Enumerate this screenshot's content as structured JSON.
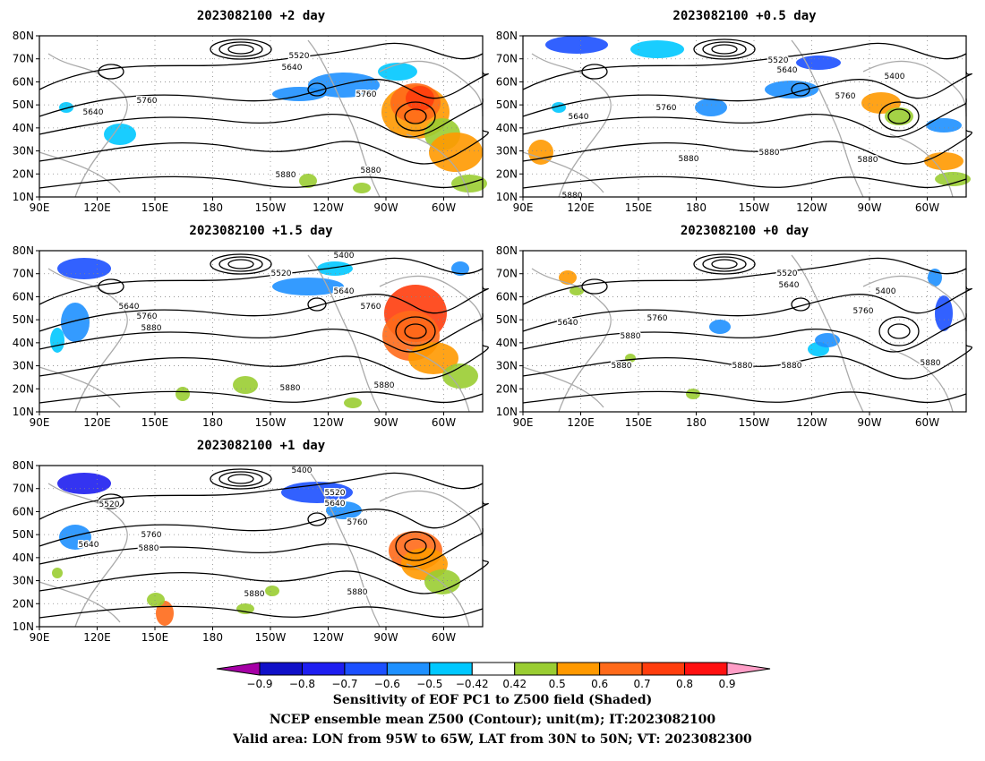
{
  "panels": [
    {
      "title": "2023082100 +2 day",
      "contour_labels": [
        "5520",
        "5640",
        "5640",
        "5760",
        "5760",
        "5880",
        "5880"
      ]
    },
    {
      "title": "2023082100 +0.5 day",
      "contour_labels": [
        "5520",
        "5640",
        "5400",
        "5640",
        "5760",
        "5760",
        "5880",
        "5880",
        "5880",
        "5880"
      ]
    },
    {
      "title": "2023082100 +1.5 day",
      "contour_labels": [
        "5400",
        "5520",
        "5640",
        "5640",
        "5760",
        "5760",
        "5880",
        "5880",
        "5880"
      ]
    },
    {
      "title": "2023082100 +0 day",
      "contour_labels": [
        "5520",
        "5640",
        "5400",
        "5640",
        "5760",
        "5760",
        "5880",
        "5880",
        "5880",
        "5880",
        "5880"
      ]
    },
    {
      "title": "2023082100 +1 day",
      "contour_labels": [
        "5400",
        "5520",
        "5520",
        "5640",
        "5640",
        "5760",
        "5760",
        "5880",
        "5880",
        "5880"
      ]
    }
  ],
  "lat_labels": [
    "80N",
    "70N",
    "60N",
    "50N",
    "40N",
    "30N",
    "20N",
    "10N"
  ],
  "lon_labels": [
    "90E",
    "120E",
    "150E",
    "180",
    "150W",
    "120W",
    "90W",
    "60W"
  ],
  "colorbar": {
    "ticks": [
      "−0.9",
      "−0.8",
      "−0.7",
      "−0.6",
      "−0.5",
      "−0.42",
      "0.42",
      "0.5",
      "0.6",
      "0.7",
      "0.8",
      "0.9"
    ],
    "colors": [
      "#a600a6",
      "#1010c8",
      "#1e1ef0",
      "#1c50ff",
      "#1e90ff",
      "#00c8ff",
      "#ffffff",
      "#9acd32",
      "#ff9900",
      "#ff6a1a",
      "#ff3d0d",
      "#ff1010",
      "#ff9ec7"
    ]
  },
  "footer": {
    "line1": "Sensitivity of EOF PC1 to Z500 field (Shaded)",
    "line2": "NCEP ensemble mean Z500 (Contour); unit(m); IT:2023082100",
    "line3": "Valid area: LON from 95W to 65W, LAT from 30N to 50N; VT: 2023082300"
  }
}
